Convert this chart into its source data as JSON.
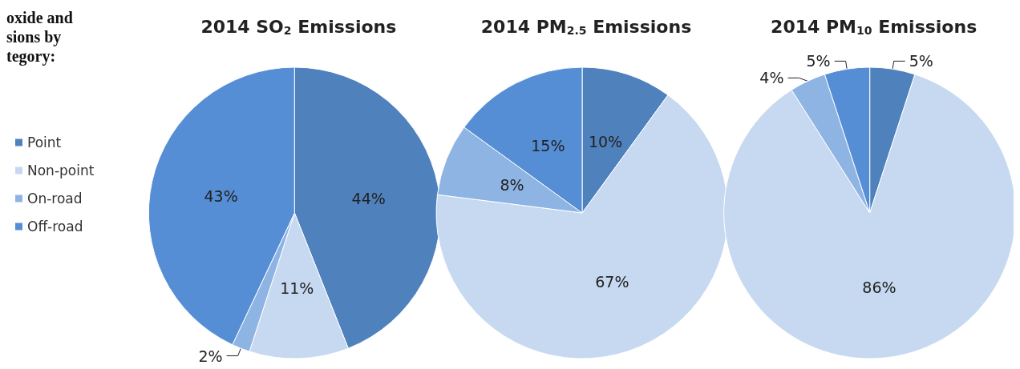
{
  "chart_data": {
    "type": "pie",
    "annotations": [
      "oxide and\nsions by\ntegory:"
    ],
    "legend": "left",
    "categories": [
      "Point",
      "Non-point",
      "On-road",
      "Off-road"
    ],
    "colors": [
      "#4f81bd",
      "#c6d9f1",
      "#8eb4e3",
      "#558ed5"
    ],
    "series": [
      {
        "name": "2014 SO$_{2}$ Emissions",
        "values": [
          44,
          11,
          2,
          43
        ],
        "value_labels": [
          "44%",
          "11%",
          "2%",
          "43%"
        ]
      },
      {
        "name": "2014 PM$_{2.5}$ Emissions",
        "values": [
          10,
          67,
          8,
          15
        ],
        "value_labels": [
          "10%",
          "67%",
          "8%",
          "15%"
        ]
      },
      {
        "name": "2014 PM$_{10}$ Emissions",
        "values": [
          5,
          86,
          4,
          5
        ],
        "value_labels": [
          "5%",
          "86%",
          "4%",
          "5%"
        ]
      }
    ]
  }
}
